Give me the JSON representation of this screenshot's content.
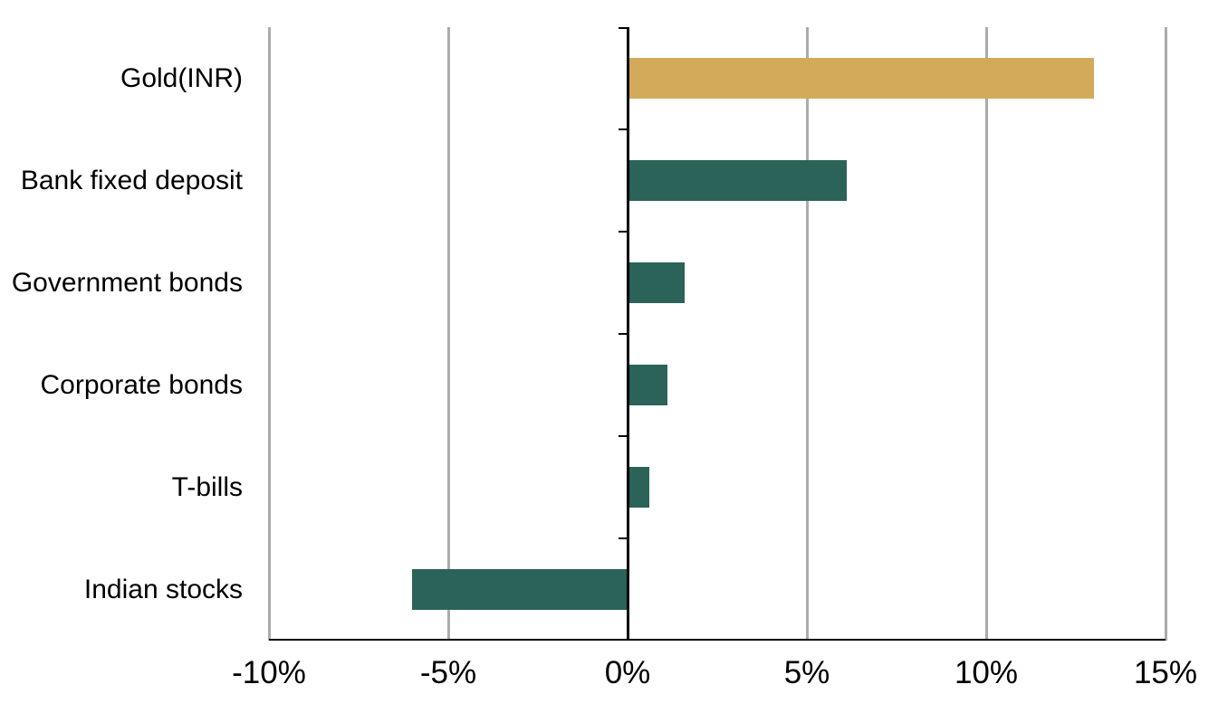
{
  "chart_data": {
    "type": "bar",
    "orientation": "horizontal",
    "title": "",
    "categories": [
      "Gold(INR)",
      "Bank fixed deposit",
      "Government bonds",
      "Corporate bonds",
      "T-bills",
      "Indian stocks"
    ],
    "values": [
      13.0,
      6.1,
      1.6,
      1.1,
      0.6,
      -6.0
    ],
    "unit": "%",
    "xlim": [
      -10,
      15
    ],
    "x_ticks": [
      -10,
      -5,
      0,
      5,
      10,
      15
    ],
    "x_tick_labels": [
      "-10%",
      "-5%",
      "0%",
      "5%",
      "10%",
      "15%"
    ],
    "grid": true,
    "legend": "none",
    "bar_colors": [
      "#D2AA5A",
      "#2B6358",
      "#2B6358",
      "#2B6358",
      "#2B6358",
      "#2B6358"
    ],
    "colors": {
      "gold_accent": "#D2AA5A",
      "green_accent": "#2B6358",
      "gridline": "#ABABAB",
      "axis": "#000000",
      "text": "#000000",
      "background": "#FFFFFF"
    }
  }
}
